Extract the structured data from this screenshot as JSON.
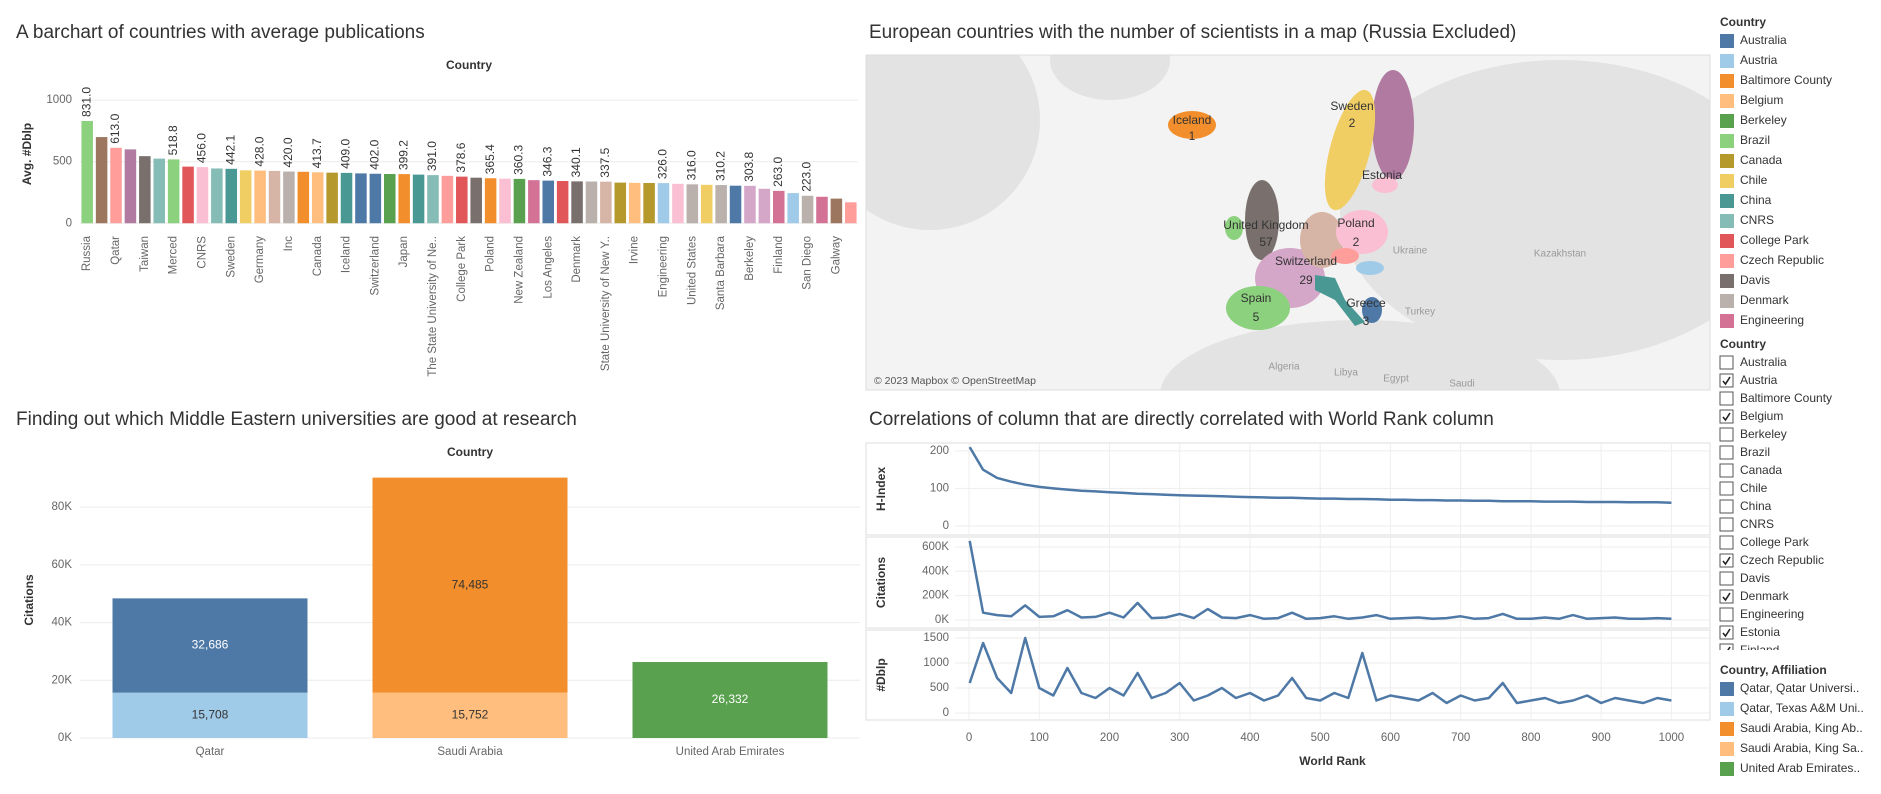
{
  "chart_data": [
    {
      "type": "bar",
      "title": "A barchart of countries with average publications",
      "header": "Country",
      "ylabel": "Avg. #Dblp",
      "categories": [
        "Russia",
        null,
        "Qatar",
        null,
        "Taiwan",
        null,
        "Merced",
        null,
        "CNRS",
        null,
        "Sweden",
        null,
        "Germany",
        null,
        "Inc",
        null,
        "Canada",
        null,
        "Iceland",
        null,
        "Switzerland",
        null,
        "Japan",
        null,
        "The State University of Ne..",
        null,
        "College Park",
        null,
        "Poland",
        null,
        "New Zealand",
        null,
        "Los Angeles",
        null,
        "Denmark",
        null,
        "State University of New Y..",
        null,
        "Irvine",
        null,
        "Engineering",
        null,
        "United States",
        null,
        "Santa Barbara",
        null,
        "Berkeley",
        null,
        "Finland",
        null,
        "San Diego",
        null,
        "Galway",
        null
      ],
      "values": [
        831,
        700,
        613,
        600,
        545,
        525,
        518.8,
        460,
        456,
        445,
        442.1,
        430,
        428,
        425,
        420,
        418,
        413.7,
        411,
        409,
        405,
        402,
        400,
        399.2,
        395,
        391,
        385,
        378.6,
        370,
        365.4,
        362,
        360.3,
        350,
        346.3,
        343,
        340.1,
        339,
        337.5,
        330,
        328,
        327,
        326,
        320,
        316,
        312,
        310.2,
        305,
        303.8,
        280,
        263,
        245,
        223,
        215,
        200,
        170
      ],
      "value_labels": [
        "831.0",
        null,
        "613.0",
        null,
        null,
        null,
        "518.8",
        null,
        "456.0",
        null,
        "442.1",
        null,
        "428.0",
        null,
        "420.0",
        null,
        "413.7",
        null,
        "409.0",
        null,
        "402.0",
        null,
        "399.2",
        null,
        "391.0",
        null,
        "378.6",
        null,
        "365.4",
        null,
        "360.3",
        null,
        "346.3",
        null,
        "340.1",
        null,
        "337.5",
        null,
        null,
        null,
        "326.0",
        null,
        "316.0",
        null,
        "310.2",
        null,
        "303.8",
        null,
        "263.0",
        null,
        "223.0",
        null,
        null,
        null
      ],
      "colors": [
        "#8cd17d",
        "#9d7660",
        "#ff9d9a",
        "#b07aa1",
        "#79706e",
        "#86bcb6",
        "#8cd17d",
        "#e15759",
        "#fabfd2",
        "#86bcb6",
        "#499894",
        "#f1ce63",
        "#ffbe7d",
        "#d7b5a6",
        "#bab0ac",
        "#f28e2b",
        "#ffbe7d",
        "#b6992d",
        "#499894",
        "#4e79a7",
        "#4e79a7",
        "#59a14f",
        "#f28e2b",
        "#499894",
        "#86bcb6",
        "#ff9d9a",
        "#e15759",
        "#79706e",
        "#f28e2b",
        "#fabfd2",
        "#59a14f",
        "#d37295",
        "#4e79a7",
        "#e15759",
        "#79706e",
        "#bab0ac",
        "#d7b5a6",
        "#b6992d",
        "#ffbe7d",
        "#b6992d",
        "#a0cbe8",
        "#fabfd2",
        "#bab0ac",
        "#f1ce63",
        "#bab0ac",
        "#4e79a7",
        "#d4a6c8",
        "#d4a6c8",
        "#d37295",
        "#a0cbe8",
        "#bab0ac",
        "#d37295",
        "#9d7660",
        "#ff9d9a"
      ],
      "ylim": [
        -55,
        1180
      ],
      "yticks": [
        0,
        500,
        1000
      ],
      "grid": true
    },
    {
      "type": "stacked_bar",
      "title": "Finding out which Middle Eastern universities are good at research",
      "header": "Country",
      "ylabel": "Citations",
      "categories": [
        "Qatar",
        "Saudi Arabia",
        "United Arab Emirates"
      ],
      "legend_title": "Country, Affiliation",
      "series": [
        {
          "name": "Qatar, Qatar Universi..",
          "color": "#4e79a7",
          "values": [
            32686,
            null,
            null
          ],
          "value_labels": [
            "32,686",
            null,
            null
          ]
        },
        {
          "name": "Qatar, Texas A&M Uni..",
          "color": "#a0cbe8",
          "values": [
            15708,
            null,
            null
          ],
          "value_labels": [
            "15,708",
            null,
            null
          ]
        },
        {
          "name": "Saudi Arabia, King Ab..",
          "color": "#f28e2b",
          "values": [
            null,
            74485,
            null
          ],
          "value_labels": [
            null,
            "74,485",
            null
          ]
        },
        {
          "name": "Saudi Arabia, King Sa..",
          "color": "#ffbe7d",
          "values": [
            null,
            15752,
            null
          ],
          "value_labels": [
            null,
            "15,752",
            null
          ]
        },
        {
          "name": "United Arab Emirates..",
          "color": "#59a14f",
          "values": [
            null,
            null,
            26332
          ],
          "value_labels": [
            null,
            null,
            "26,332"
          ]
        }
      ],
      "ylim": [
        0,
        96000
      ],
      "yticks": [
        {
          "value": 0,
          "label": "0K"
        },
        {
          "value": 20000,
          "label": "20K"
        },
        {
          "value": 40000,
          "label": "40K"
        },
        {
          "value": 60000,
          "label": "60K"
        },
        {
          "value": 80000,
          "label": "80K"
        }
      ],
      "grid": true
    },
    {
      "type": "line",
      "title": "Correlations of column that are directly correlated with World Rank column",
      "xlabel": "World Rank",
      "x": [
        1,
        20,
        40,
        60,
        80,
        100,
        120,
        140,
        160,
        180,
        200,
        220,
        240,
        260,
        280,
        300,
        320,
        340,
        360,
        380,
        400,
        420,
        440,
        460,
        480,
        500,
        520,
        540,
        560,
        580,
        600,
        620,
        640,
        660,
        680,
        700,
        720,
        740,
        760,
        780,
        800,
        820,
        840,
        860,
        880,
        900,
        920,
        940,
        960,
        980,
        1000
      ],
      "xlim": [
        -20,
        1055
      ],
      "xticks": [
        0,
        100,
        200,
        300,
        400,
        500,
        600,
        700,
        800,
        900,
        1000
      ],
      "grid": true,
      "panes": [
        {
          "ylabel": "H-Index",
          "ylim": [
            -24,
            221
          ],
          "yticks": [
            0,
            100,
            200
          ],
          "series": [
            {
              "color": "#4e79a7",
              "values": [
                210,
                150,
                128,
                118,
                110,
                104,
                100,
                97,
                94,
                92,
                90,
                88,
                86,
                85,
                83,
                82,
                81,
                80,
                79,
                78,
                77,
                76,
                75,
                75,
                74,
                73,
                73,
                72,
                72,
                71,
                70,
                70,
                69,
                69,
                68,
                68,
                67,
                67,
                66,
                66,
                66,
                65,
                65,
                65,
                64,
                64,
                64,
                63,
                63,
                63,
                62
              ]
            }
          ]
        },
        {
          "ylabel": "Citations",
          "ylim": [
            -66000,
            682000
          ],
          "yticks": [
            {
              "value": 0,
              "label": "0K"
            },
            {
              "value": 200000,
              "label": "200K"
            },
            {
              "value": 400000,
              "label": "400K"
            },
            {
              "value": 600000,
              "label": "600K"
            }
          ],
          "series": [
            {
              "color": "#4e79a7",
              "values": [
                650000,
                60000,
                40000,
                30000,
                120000,
                25000,
                30000,
                80000,
                20000,
                25000,
                60000,
                20000,
                140000,
                15000,
                20000,
                50000,
                15000,
                90000,
                20000,
                15000,
                40000,
                10000,
                15000,
                60000,
                10000,
                15000,
                30000,
                10000,
                20000,
                40000,
                10000,
                15000,
                20000,
                10000,
                15000,
                30000,
                10000,
                15000,
                50000,
                10000,
                10000,
                20000,
                10000,
                40000,
                10000,
                15000,
                20000,
                10000,
                10000,
                15000,
                10000
              ]
            }
          ]
        },
        {
          "ylabel": "#Dblp",
          "ylim": [
            -140,
            1660
          ],
          "yticks": [
            0,
            500,
            1000,
            1500
          ],
          "series": [
            {
              "color": "#4e79a7",
              "values": [
                600,
                1400,
                700,
                400,
                1500,
                500,
                350,
                900,
                400,
                300,
                500,
                350,
                800,
                300,
                400,
                600,
                250,
                350,
                500,
                300,
                400,
                250,
                350,
                700,
                300,
                250,
                400,
                300,
                1200,
                250,
                350,
                300,
                250,
                400,
                200,
                350,
                250,
                300,
                600,
                200,
                250,
                300,
                200,
                250,
                350,
                200,
                300,
                250,
                200,
                300,
                250
              ]
            }
          ]
        }
      ]
    }
  ],
  "map": {
    "title": "European countries with the number of scientists in a map (Russia Excluded)",
    "attribution": "© 2023 Mapbox © OpenStreetMap",
    "regions": [
      {
        "name": "Iceland",
        "value": 1
      },
      {
        "name": "Sweden",
        "value": 2
      },
      {
        "name": "Estonia"
      },
      {
        "name": "United Kingdom",
        "value": 57
      },
      {
        "name": "Poland",
        "value": 2
      },
      {
        "name": "Switzerland",
        "value": 29
      },
      {
        "name": "Spain",
        "value": 5
      },
      {
        "name": "Greece",
        "value": 3
      }
    ],
    "basemap_labels": [
      "Kazakhstan",
      "Ukraine",
      "Turkey",
      "Algeria",
      "Libya",
      "Egypt",
      "Saudi"
    ]
  },
  "color_legend": {
    "title": "Country",
    "items": [
      {
        "label": "Australia",
        "color": "#4e79a7"
      },
      {
        "label": "Austria",
        "color": "#a0cbe8"
      },
      {
        "label": "Baltimore County",
        "color": "#f28e2b"
      },
      {
        "label": "Belgium",
        "color": "#ffbe7d"
      },
      {
        "label": "Berkeley",
        "color": "#59a14f"
      },
      {
        "label": "Brazil",
        "color": "#8cd17d"
      },
      {
        "label": "Canada",
        "color": "#b6992d"
      },
      {
        "label": "Chile",
        "color": "#f1ce63"
      },
      {
        "label": "China",
        "color": "#499894"
      },
      {
        "label": "CNRS",
        "color": "#86bcb6"
      },
      {
        "label": "College Park",
        "color": "#e15759"
      },
      {
        "label": "Czech Republic",
        "color": "#ff9d9a"
      },
      {
        "label": "Davis",
        "color": "#79706e"
      },
      {
        "label": "Denmark",
        "color": "#bab0ac"
      },
      {
        "label": "Engineering",
        "color": "#d37295"
      }
    ]
  },
  "filter": {
    "title": "Country",
    "items": [
      {
        "label": "Australia",
        "checked": false
      },
      {
        "label": "Austria",
        "checked": true
      },
      {
        "label": "Baltimore County",
        "checked": false
      },
      {
        "label": "Belgium",
        "checked": true
      },
      {
        "label": "Berkeley",
        "checked": false
      },
      {
        "label": "Brazil",
        "checked": false
      },
      {
        "label": "Canada",
        "checked": false
      },
      {
        "label": "Chile",
        "checked": false
      },
      {
        "label": "China",
        "checked": false
      },
      {
        "label": "CNRS",
        "checked": false
      },
      {
        "label": "College Park",
        "checked": false
      },
      {
        "label": "Czech Republic",
        "checked": true
      },
      {
        "label": "Davis",
        "checked": false
      },
      {
        "label": "Denmark",
        "checked": true
      },
      {
        "label": "Engineering",
        "checked": false
      },
      {
        "label": "Estonia",
        "checked": true
      },
      {
        "label": "Finland",
        "checked": true
      }
    ]
  }
}
